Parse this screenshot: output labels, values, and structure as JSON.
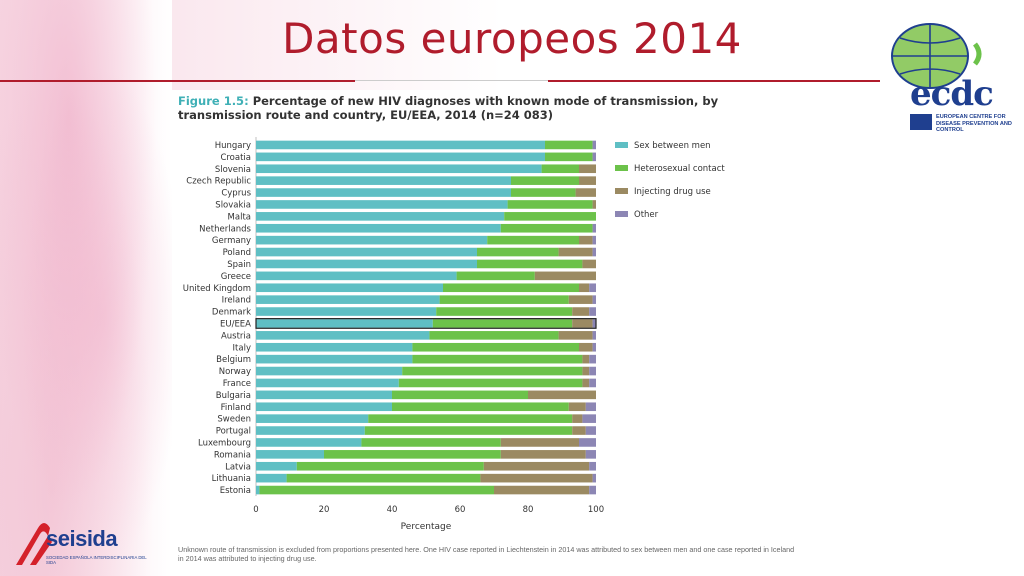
{
  "slide_title": "Datos europeos 2014",
  "figure": {
    "label": "Figure 1.5:",
    "title": "Percentage of new HIV diagnoses with known mode of transmission, by transmission route and country, EU/EEA, 2014 (n=24 083)"
  },
  "footnote": "Unknown route of transmission is excluded from proportions presented here. One HIV case reported in Liechtenstein in 2014 was attributed to sex between men and one case reported in Iceland in 2014 was attributed to injecting drug use.",
  "logos": {
    "ecdc_text": "ecdc",
    "ecdc_sub": "EUROPEAN CENTRE FOR DISEASE PREVENTION AND CONTROL",
    "seisida_name": "seisida",
    "seisida_tag": "SOCIEDAD ESPAÑOLA INTERDISCIPLINARIA DEL SIDA"
  },
  "colors": {
    "title": "#b01c2c",
    "sex_between_men": "#5fbfc4",
    "heterosexual": "#6cc24a",
    "injecting": "#9b8a62",
    "other": "#8c86b4"
  },
  "chart_data": {
    "type": "bar",
    "orientation": "horizontal",
    "stacked": true,
    "xlabel": "Percentage",
    "xlim": [
      0,
      100
    ],
    "xticks": [
      0,
      20,
      40,
      60,
      80,
      100
    ],
    "legend_position": "right",
    "highlighted_category": "EU/EEA",
    "categories": [
      "Hungary",
      "Croatia",
      "Slovenia",
      "Czech Republic",
      "Cyprus",
      "Slovakia",
      "Malta",
      "Netherlands",
      "Germany",
      "Poland",
      "Spain",
      "Greece",
      "United Kingdom",
      "Ireland",
      "Denmark",
      "EU/EEA",
      "Austria",
      "Italy",
      "Belgium",
      "Norway",
      "France",
      "Bulgaria",
      "Finland",
      "Sweden",
      "Portugal",
      "Luxembourg",
      "Romania",
      "Latvia",
      "Lithuania",
      "Estonia"
    ],
    "series": [
      {
        "name": "Sex between men",
        "color": "#5fbfc4",
        "values": [
          85,
          85,
          84,
          75,
          75,
          74,
          73,
          72,
          68,
          65,
          65,
          59,
          55,
          54,
          53,
          52,
          51,
          46,
          46,
          43,
          42,
          40,
          40,
          33,
          32,
          31,
          20,
          12,
          9,
          1
        ]
      },
      {
        "name": "Heterosexual contact",
        "color": "#6cc24a",
        "values": [
          14,
          14,
          11,
          20,
          19,
          25,
          27,
          27,
          27,
          24,
          31,
          23,
          40,
          38,
          40,
          41,
          38,
          49,
          50,
          53,
          54,
          40,
          52,
          60,
          61,
          41,
          52,
          55,
          57,
          69
        ]
      },
      {
        "name": "Injecting drug use",
        "color": "#9b8a62",
        "values": [
          0,
          0,
          5,
          5,
          6,
          1,
          0,
          0,
          4,
          10,
          4,
          18,
          3,
          7,
          5,
          6,
          10,
          4,
          2,
          2,
          2,
          20,
          5,
          3,
          4,
          23,
          25,
          31,
          33,
          28
        ]
      },
      {
        "name": "Other",
        "color": "#8c86b4",
        "values": [
          1,
          1,
          0,
          0,
          0,
          0,
          0,
          1,
          1,
          1,
          0,
          0,
          2,
          1,
          2,
          1,
          1,
          1,
          2,
          2,
          2,
          0,
          3,
          4,
          3,
          5,
          3,
          2,
          1,
          2
        ]
      }
    ]
  }
}
